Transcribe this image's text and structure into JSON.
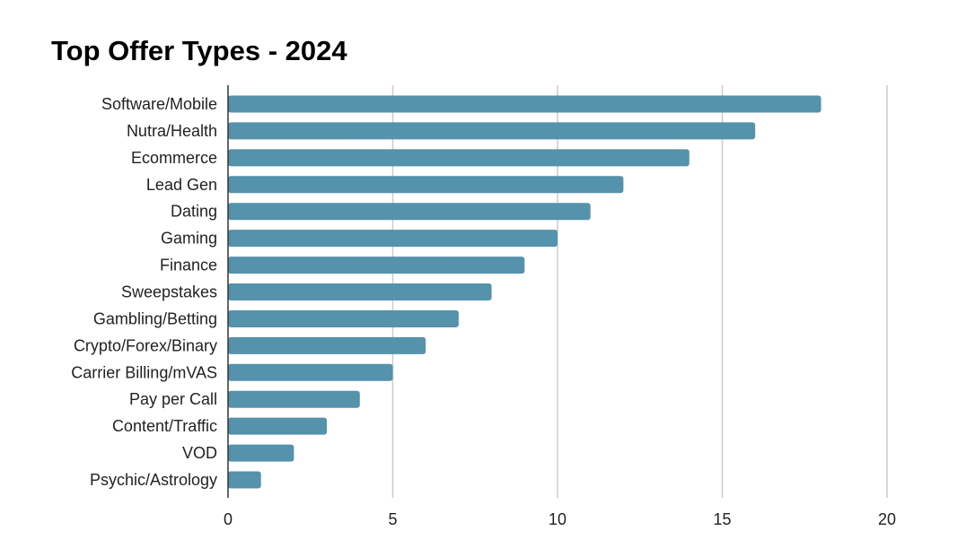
{
  "chart_data": {
    "type": "bar",
    "orientation": "horizontal",
    "title": "Top Offer Types - 2024",
    "xlabel": "",
    "ylabel": "",
    "categories": [
      "Software/Mobile",
      "Nutra/Health",
      "Ecommerce",
      "Lead Gen",
      "Dating",
      "Gaming",
      "Finance",
      "Sweepstakes",
      "Gambling/Betting",
      "Crypto/Forex/Binary",
      "Carrier Billing/mVAS",
      "Pay per Call",
      "Content/Traffic",
      "VOD",
      "Psychic/Astrology"
    ],
    "values": [
      18,
      16,
      14,
      12,
      11,
      10,
      9,
      8,
      7,
      6,
      5,
      4,
      3,
      2,
      1
    ],
    "xlim": [
      0,
      20
    ],
    "xticks": [
      "0",
      "5",
      "10",
      "15",
      "20"
    ],
    "grid": true,
    "legend": "none",
    "bar_color": "#5592ab"
  }
}
